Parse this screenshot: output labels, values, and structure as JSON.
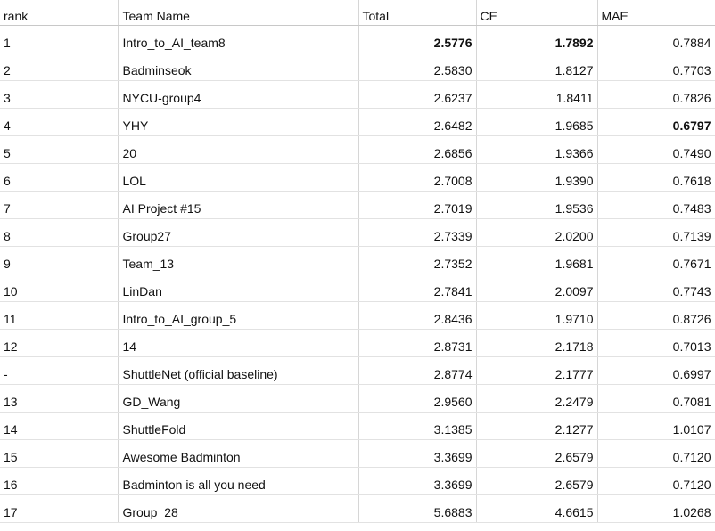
{
  "headers": {
    "rank": "rank",
    "team": "Team Name",
    "total": "Total",
    "ce": "CE",
    "mae": "MAE"
  },
  "rows": [
    {
      "rank": "1",
      "team": "Intro_to_AI_team8",
      "total": "2.5776",
      "ce": "1.7892",
      "mae": "0.7884"
    },
    {
      "rank": "2",
      "team": "Badminseok",
      "total": "2.5830",
      "ce": "1.8127",
      "mae": "0.7703"
    },
    {
      "rank": "3",
      "team": "NYCU-group4",
      "total": "2.6237",
      "ce": "1.8411",
      "mae": "0.7826"
    },
    {
      "rank": "4",
      "team": "YHY",
      "total": "2.6482",
      "ce": "1.9685",
      "mae": "0.6797"
    },
    {
      "rank": "5",
      "team": "20",
      "total": "2.6856",
      "ce": "1.9366",
      "mae": "0.7490"
    },
    {
      "rank": "6",
      "team": "LOL",
      "total": "2.7008",
      "ce": "1.9390",
      "mae": "0.7618"
    },
    {
      "rank": "7",
      "team": "AI Project #15",
      "total": "2.7019",
      "ce": "1.9536",
      "mae": "0.7483"
    },
    {
      "rank": "8",
      "team": "Group27",
      "total": "2.7339",
      "ce": "2.0200",
      "mae": "0.7139"
    },
    {
      "rank": "9",
      "team": "Team_13",
      "total": "2.7352",
      "ce": "1.9681",
      "mae": "0.7671"
    },
    {
      "rank": "10",
      "team": "LinDan",
      "total": "2.7841",
      "ce": "2.0097",
      "mae": "0.7743"
    },
    {
      "rank": "11",
      "team": "Intro_to_AI_group_5",
      "total": "2.8436",
      "ce": "1.9710",
      "mae": "0.8726"
    },
    {
      "rank": "12",
      "team": "14",
      "total": "2.8731",
      "ce": "2.1718",
      "mae": "0.7013"
    },
    {
      "rank": "-",
      "team": "ShuttleNet (official baseline)",
      "total": "2.8774",
      "ce": "2.1777",
      "mae": "0.6997"
    },
    {
      "rank": "13",
      "team": "GD_Wang",
      "total": "2.9560",
      "ce": "2.2479",
      "mae": "0.7081"
    },
    {
      "rank": "14",
      "team": "ShuttleFold",
      "total": "3.1385",
      "ce": "2.1277",
      "mae": "1.0107"
    },
    {
      "rank": "15",
      "team": "Awesome Badminton",
      "total": "3.3699",
      "ce": "2.6579",
      "mae": "0.7120"
    },
    {
      "rank": "16",
      "team": "Badminton is all you need",
      "total": "3.3699",
      "ce": "2.6579",
      "mae": "0.7120"
    },
    {
      "rank": "17",
      "team": "Group_28",
      "total": "5.6883",
      "ce": "4.6615",
      "mae": "1.0268"
    }
  ],
  "highlight": {
    "bold_cells": [
      {
        "row": 0,
        "col": "total"
      },
      {
        "row": 0,
        "col": "ce"
      },
      {
        "row": 3,
        "col": "mae"
      }
    ]
  }
}
